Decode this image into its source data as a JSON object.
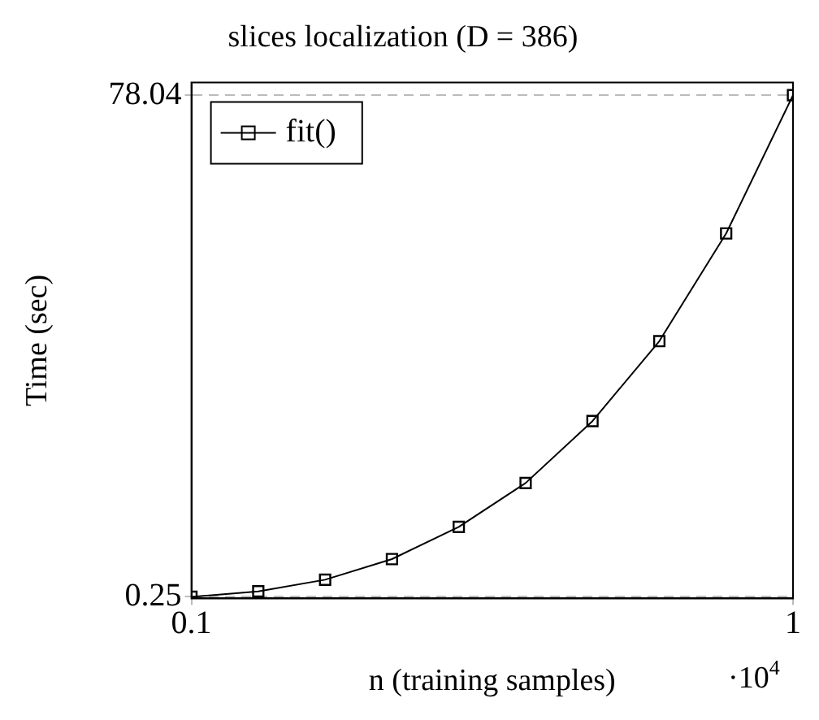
{
  "chart_data": {
    "type": "line",
    "title": "slices localization (D = 386)",
    "xlabel": "n (training samples)",
    "ylabel": "Time (sec)",
    "annotations": [
      "·10$^{4}$"
    ],
    "x": [
      0.1,
      0.2,
      0.3,
      0.4,
      0.5,
      0.6,
      0.7,
      0.8,
      0.9,
      1
    ],
    "series": [
      {
        "name": "fit()",
        "color": "#000000",
        "values": [
          0.25,
          1.1,
          2.9,
          6.1,
          11.1,
          17.9,
          27.5,
          39.9,
          56.6,
          78.04
        ]
      }
    ],
    "xlim": [
      0.1,
      1
    ],
    "xticks": [
      0.1,
      1
    ],
    "ylim": [
      0,
      80
    ],
    "yticks": [
      0.25,
      78.04
    ],
    "grid": "y",
    "legend": "top left",
    "marker": "square",
    "line_style": "solid"
  }
}
